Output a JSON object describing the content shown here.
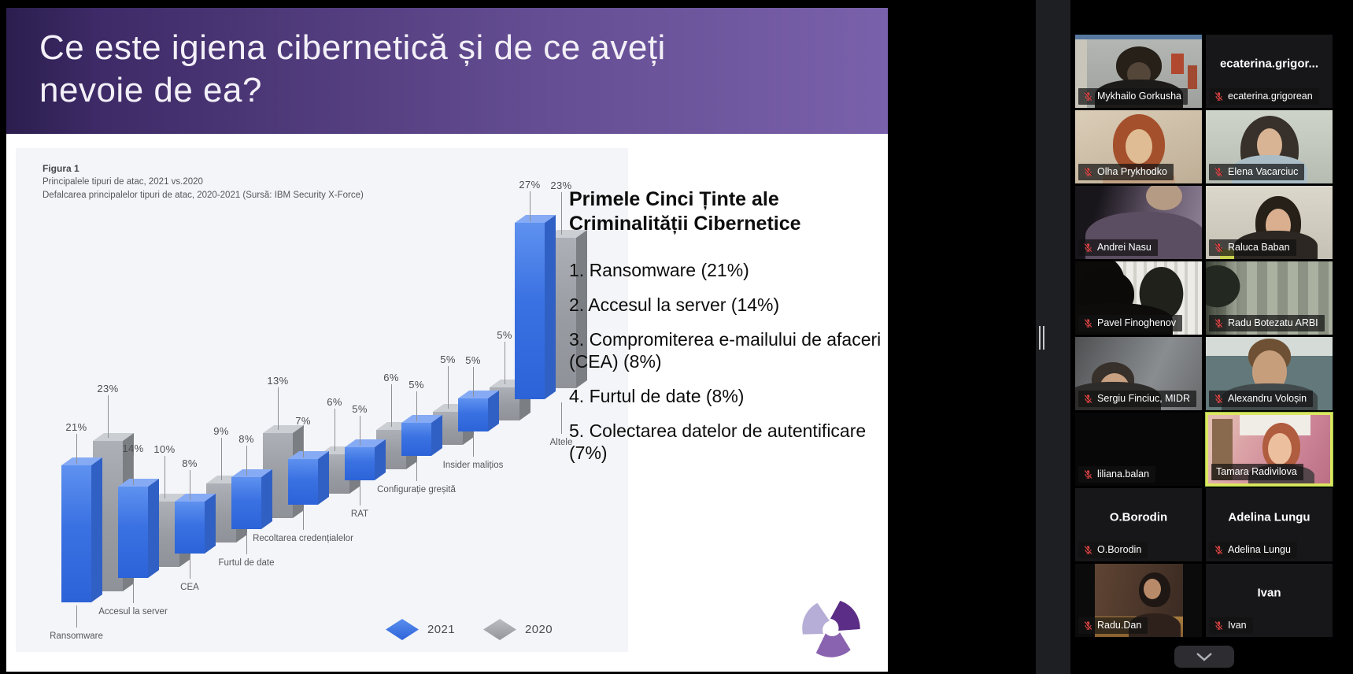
{
  "slide": {
    "title_lines": [
      "Ce este igiena cibernetică și de ce aveți",
      "nevoie de ea?"
    ],
    "figure_caption": {
      "label": "Figura 1",
      "line1": "Principalele tipuri de atac, 2021 vs.2020",
      "line2": "Defalcarea principalelor tipuri de atac, 2020-2021 (Sursă: IBM Security X-Force)"
    },
    "right_panel": {
      "heading": "Primele Cinci Ținte ale Criminalității Cibernetice",
      "items": [
        "1. Ransomware (21%)",
        "2. Accesul la server (14%)",
        "3. Compromiterea e-mailului de afaceri (CEA) (8%)",
        "4. Furtul de date (8%)",
        "5. Colectarea  datelor de autentificare (7%)"
      ]
    },
    "logo_icon": "purple-pinwheel-logo"
  },
  "chart_data": {
    "type": "bar",
    "title": "Figura 1",
    "subtitle": "Principalele tipuri de atac, 2021 vs.2020",
    "source_note": "Defalcarea principalelor tipuri de atac, 2020-2021 (Sursă: IBM Security X-Force)",
    "unit": "%",
    "categories": [
      "Ransomware",
      "Accesul la server",
      "CEA",
      "Furtul de date",
      "Recoltarea credențialelor",
      "RAT",
      "Configurație greșită",
      "Insider malițios",
      "Altele"
    ],
    "series": [
      {
        "name": "2021",
        "color": "#3a71e2",
        "values": [
          21,
          14,
          8,
          8,
          7,
          5,
          5,
          5,
          27
        ]
      },
      {
        "name": "2020",
        "color": "#989ba1",
        "values": [
          23,
          10,
          9,
          13,
          6,
          6,
          5,
          5,
          23
        ]
      }
    ],
    "legend_position": "bottom",
    "style": "3d-isometric-rising-baseline"
  },
  "colors": {
    "banner_purple_dark": "#2b1e4e",
    "banner_purple_light": "#7a61ab",
    "bar_2021_blue": "#3a71e2",
    "bar_2020_gray": "#989ba1",
    "active_speaker_border": "#dde75f",
    "muted_mic_red": "#e24545"
  },
  "gallery": {
    "scroll_down_icon": "chevron-down",
    "participants": [
      {
        "name": "Mykhailo Gorkusha",
        "center": "",
        "muted": true,
        "speaking": false,
        "video": "myk"
      },
      {
        "name": "ecaterina.grigorean",
        "center": "ecaterina.grigor...",
        "muted": true,
        "speaking": false,
        "video": "none"
      },
      {
        "name": "Olha Prykhodko",
        "center": "",
        "muted": true,
        "speaking": false,
        "video": "olha"
      },
      {
        "name": "Elena Vacarciuc",
        "center": "",
        "muted": true,
        "speaking": false,
        "video": "elena"
      },
      {
        "name": "Andrei Nasu",
        "center": "",
        "muted": true,
        "speaking": false,
        "video": "andrei"
      },
      {
        "name": "Raluca Baban",
        "center": "",
        "muted": true,
        "speaking": false,
        "video": "raluca"
      },
      {
        "name": "Pavel Finoghenov",
        "center": "",
        "muted": true,
        "speaking": false,
        "video": "pavel"
      },
      {
        "name": "Radu Botezatu ARBI",
        "center": "",
        "muted": true,
        "speaking": false,
        "video": "radub"
      },
      {
        "name": "Sergiu Finciuc, MIDR",
        "center": "",
        "muted": true,
        "speaking": false,
        "video": "sergiu"
      },
      {
        "name": "Alexandru Voloșin",
        "center": "",
        "muted": true,
        "speaking": false,
        "video": "alex"
      },
      {
        "name": "liliana.balan",
        "center": "",
        "muted": true,
        "speaking": false,
        "video": "lil"
      },
      {
        "name": "Tamara Radivilova",
        "center": "",
        "muted": false,
        "speaking": true,
        "video": "tam"
      },
      {
        "name": "O.Borodin",
        "center": "O.Borodin",
        "muted": true,
        "speaking": false,
        "video": "none"
      },
      {
        "name": "Adelina Lungu",
        "center": "Adelina Lungu",
        "muted": true,
        "speaking": false,
        "video": "none"
      },
      {
        "name": "Radu.Dan",
        "center": "",
        "muted": true,
        "speaking": false,
        "video": "radud"
      },
      {
        "name": "Ivan",
        "center": "Ivan",
        "muted": true,
        "speaking": false,
        "video": "none"
      }
    ]
  }
}
